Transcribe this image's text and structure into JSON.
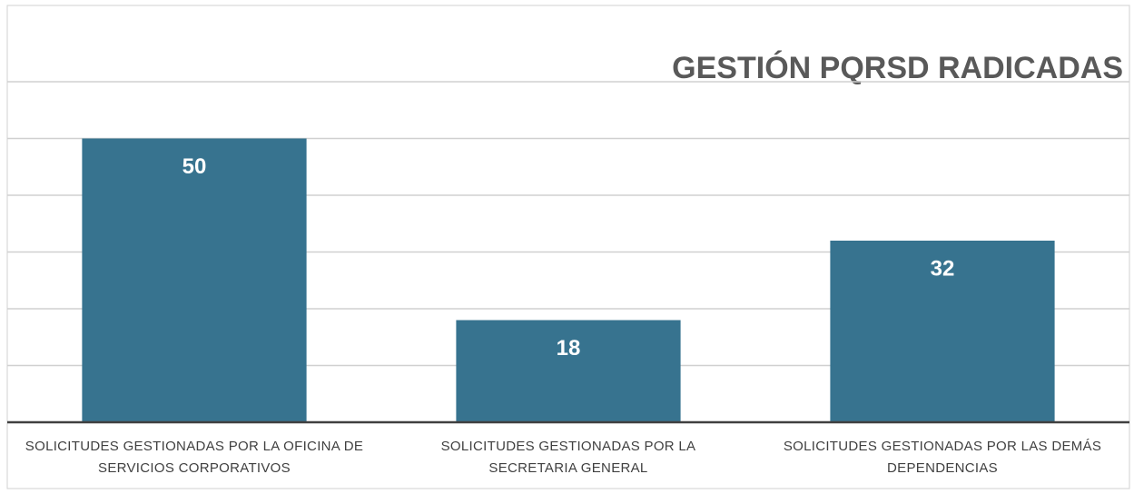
{
  "chart_data": {
    "type": "bar",
    "title": "GESTIÓN PQRSD RADICADAS",
    "categories": [
      "SOLICITUDES GESTIONADAS POR LA OFICINA DE SERVICIOS CORPORATIVOS",
      "SOLICITUDES GESTIONADAS POR LA SECRETARIA GENERAL",
      "SOLICITUDES GESTIONADAS POR LAS DEMÁS DEPENDENCIAS"
    ],
    "values": [
      50,
      18,
      32
    ],
    "color": "#37738f",
    "ylim": [
      0,
      60
    ],
    "yticks": [
      0,
      10,
      20,
      30,
      40,
      50,
      60
    ],
    "grid": true
  }
}
